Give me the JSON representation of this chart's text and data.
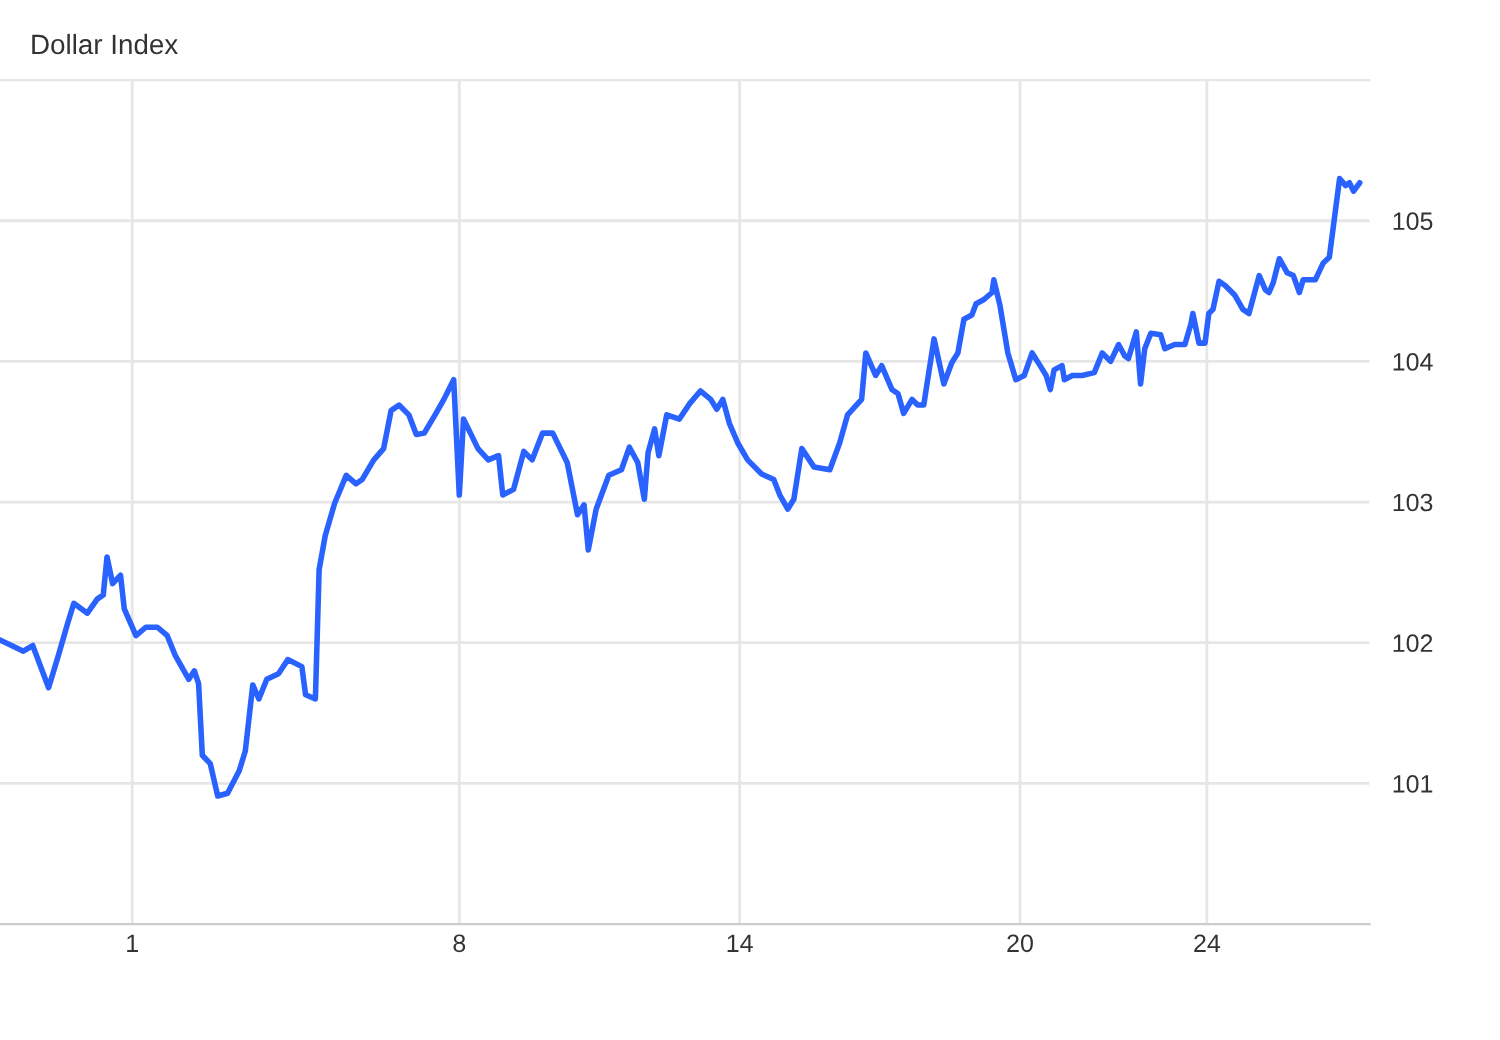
{
  "chart_data": {
    "type": "line",
    "title": "Dollar Index",
    "x": [
      -1.83,
      -1.33,
      -1.13,
      -0.79,
      -0.58,
      -0.38,
      -0.25,
      0.04,
      0.25,
      0.38,
      0.46,
      0.58,
      0.75,
      0.83,
      1.08,
      1.29,
      1.54,
      1.75,
      1.92,
      2.21,
      2.33,
      2.42,
      2.5,
      2.67,
      2.83,
      3.04,
      3.29,
      3.42,
      3.58,
      3.71,
      3.88,
      4.13,
      4.33,
      4.63,
      4.71,
      4.92,
      5.0,
      5.13,
      5.33,
      5.58,
      5.79,
      5.92,
      6.17,
      6.38,
      6.54,
      6.71,
      6.92,
      7.08,
      7.25,
      7.5,
      7.67,
      7.88,
      8.0,
      8.09,
      8.4,
      8.62,
      8.84,
      8.93,
      9.16,
      9.38,
      9.56,
      9.78,
      10.0,
      10.31,
      10.53,
      10.67,
      10.76,
      10.93,
      11.2,
      11.47,
      11.64,
      11.82,
      11.96,
      12.04,
      12.18,
      12.27,
      12.44,
      12.71,
      12.93,
      13.16,
      13.38,
      13.51,
      13.64,
      13.78,
      13.96,
      14.17,
      14.47,
      14.73,
      14.86,
      15.03,
      15.16,
      15.33,
      15.59,
      15.93,
      16.14,
      16.31,
      16.61,
      16.7,
      16.91,
      17.04,
      17.26,
      17.39,
      17.51,
      17.69,
      17.81,
      17.94,
      18.16,
      18.37,
      18.54,
      18.67,
      18.8,
      18.97,
      19.06,
      19.23,
      19.4,
      19.44,
      19.57,
      19.74,
      19.91,
      20.09,
      20.26,
      20.43,
      20.56,
      20.65,
      20.73,
      20.9,
      20.95,
      21.12,
      21.33,
      21.59,
      21.76,
      21.94,
      22.11,
      22.24,
      22.32,
      22.41,
      22.49,
      22.58,
      22.67,
      22.8,
      23.01,
      23.1,
      23.31,
      23.53,
      23.66,
      23.7,
      23.83,
      23.96,
      24.04,
      24.13,
      24.26,
      24.39,
      24.6,
      24.77,
      24.9,
      25.12,
      25.25,
      25.33,
      25.42,
      25.55,
      25.72,
      25.85,
      25.98,
      26.06,
      26.32,
      26.49,
      26.62,
      26.84,
      26.97,
      27.05,
      27.14,
      27.27
    ],
    "series": [
      {
        "color": "#2962ff",
        "values": [
          102.02,
          101.94,
          101.98,
          101.68,
          101.91,
          102.14,
          102.28,
          102.21,
          102.31,
          102.34,
          102.61,
          102.42,
          102.48,
          102.24,
          102.05,
          102.11,
          102.11,
          102.05,
          101.91,
          101.74,
          101.8,
          101.71,
          101.2,
          101.14,
          100.91,
          100.93,
          101.09,
          101.23,
          101.7,
          101.6,
          101.74,
          101.78,
          101.88,
          101.83,
          101.63,
          101.6,
          102.52,
          102.76,
          102.99,
          103.19,
          103.13,
          103.16,
          103.3,
          103.38,
          103.65,
          103.69,
          103.62,
          103.48,
          103.49,
          103.63,
          103.73,
          103.87,
          103.05,
          103.59,
          103.38,
          103.3,
          103.33,
          103.05,
          103.09,
          103.36,
          103.3,
          103.49,
          103.49,
          103.28,
          102.91,
          102.98,
          102.66,
          102.95,
          103.19,
          103.23,
          103.39,
          103.28,
          103.02,
          103.35,
          103.52,
          103.33,
          103.62,
          103.59,
          103.7,
          103.79,
          103.73,
          103.66,
          103.73,
          103.56,
          103.42,
          103.3,
          103.2,
          103.16,
          103.05,
          102.95,
          103.02,
          103.38,
          103.25,
          103.23,
          103.42,
          103.62,
          103.73,
          104.06,
          103.9,
          103.97,
          103.8,
          103.77,
          103.63,
          103.73,
          103.69,
          103.69,
          104.16,
          103.84,
          103.99,
          104.06,
          104.3,
          104.33,
          104.41,
          104.44,
          104.49,
          104.58,
          104.4,
          104.06,
          103.87,
          103.9,
          104.06,
          103.97,
          103.9,
          103.8,
          103.94,
          103.97,
          103.87,
          103.9,
          103.9,
          103.92,
          104.06,
          104.0,
          104.12,
          104.04,
          104.02,
          104.12,
          104.21,
          103.84,
          104.09,
          104.2,
          104.19,
          104.09,
          104.12,
          104.12,
          104.27,
          104.34,
          104.13,
          104.13,
          104.34,
          104.37,
          104.57,
          104.54,
          104.47,
          104.37,
          104.34,
          104.61,
          104.51,
          104.49,
          104.56,
          104.73,
          104.63,
          104.61,
          104.49,
          104.58,
          104.58,
          104.7,
          104.74,
          105.3,
          105.25,
          105.27,
          105.21,
          105.27
        ]
      }
    ],
    "xlim": [
      -1.83,
      27.48
    ],
    "xticks": [
      1,
      8,
      14,
      20,
      24
    ],
    "ylim": [
      100.0,
      106
    ],
    "yticks": [
      101,
      102,
      103,
      104,
      105
    ],
    "grid": true,
    "marker": "none",
    "line_style": "solid"
  }
}
